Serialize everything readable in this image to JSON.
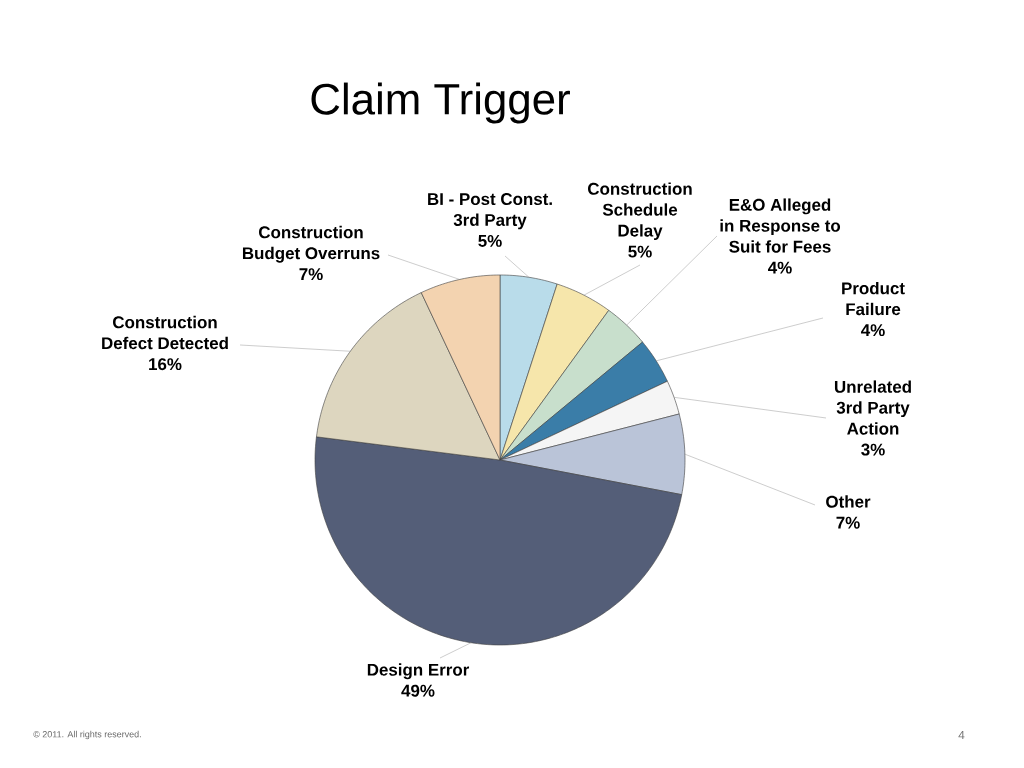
{
  "chart_data": {
    "type": "pie",
    "title": "Claim Trigger",
    "categories": [
      "BI - Post Const. 3rd Party",
      "Construction Schedule Delay",
      "E&O Alleged in Response to Suit for Fees",
      "Product Failure",
      "Unrelated 3rd Party Action",
      "Other",
      "Design Error",
      "Construction Defect Detected",
      "Construction Budget Overruns"
    ],
    "values": [
      5,
      5,
      4,
      4,
      3,
      7,
      49,
      16,
      7
    ],
    "value_labels": [
      "5%",
      "5%",
      "4%",
      "4%",
      "3%",
      "7%",
      "49%",
      "16%",
      "7%"
    ],
    "colors": [
      "#b9dcea",
      "#f6e6ab",
      "#c8dfcc",
      "#3a7da8",
      "#f5f5f5",
      "#bac4d8",
      "#545e78",
      "#ddd6bf",
      "#f3d3b0"
    ],
    "annotations": [
      "© 2011. All rights reserved.",
      "4"
    ]
  }
}
